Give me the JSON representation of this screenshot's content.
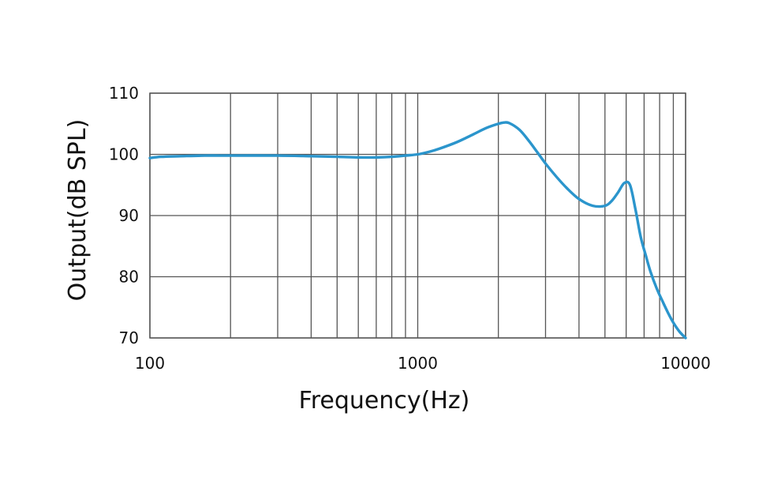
{
  "chart_data": {
    "type": "line",
    "title": "",
    "xlabel": "Frequency(Hz)",
    "ylabel": "Output(dB SPL)",
    "x_scale": "log",
    "xlim": [
      100,
      10000
    ],
    "ylim": [
      70,
      110
    ],
    "x_ticks": [
      100,
      1000,
      10000
    ],
    "x_tick_labels": [
      "100",
      "1000",
      "10000"
    ],
    "y_ticks": [
      110,
      100,
      90,
      80,
      70
    ],
    "y_tick_labels": [
      "110",
      "100",
      "90",
      "80",
      "70"
    ],
    "grid": true,
    "legend": "none",
    "series": [
      {
        "color": "#2b95cc",
        "x": [
          100,
          110,
          130,
          160,
          200,
          300,
          400,
          500,
          600,
          700,
          800,
          900,
          1000,
          1100,
          1200,
          1400,
          1600,
          1800,
          2000,
          2100,
          2200,
          2400,
          2600,
          2800,
          3000,
          3300,
          3600,
          4000,
          4500,
          5000,
          5300,
          5600,
          5900,
          6200,
          6500,
          6800,
          7100,
          7400,
          7800,
          8200,
          8600,
          9000,
          9500,
          10000
        ],
        "y": [
          99.4,
          99.6,
          99.7,
          99.8,
          99.8,
          99.8,
          99.7,
          99.6,
          99.5,
          99.5,
          99.6,
          99.8,
          100.0,
          100.4,
          100.9,
          102.0,
          103.2,
          104.3,
          105.0,
          105.2,
          105.1,
          104.0,
          102.2,
          100.3,
          98.5,
          96.3,
          94.5,
          92.7,
          91.6,
          91.6,
          92.4,
          93.8,
          95.3,
          95.0,
          91.0,
          86.5,
          83.5,
          80.8,
          78.1,
          76.0,
          74.1,
          72.5,
          71.0,
          70.0
        ]
      }
    ],
    "colors": {
      "line": "#2b95cc",
      "grid": "#555555",
      "text": "#111111"
    }
  }
}
